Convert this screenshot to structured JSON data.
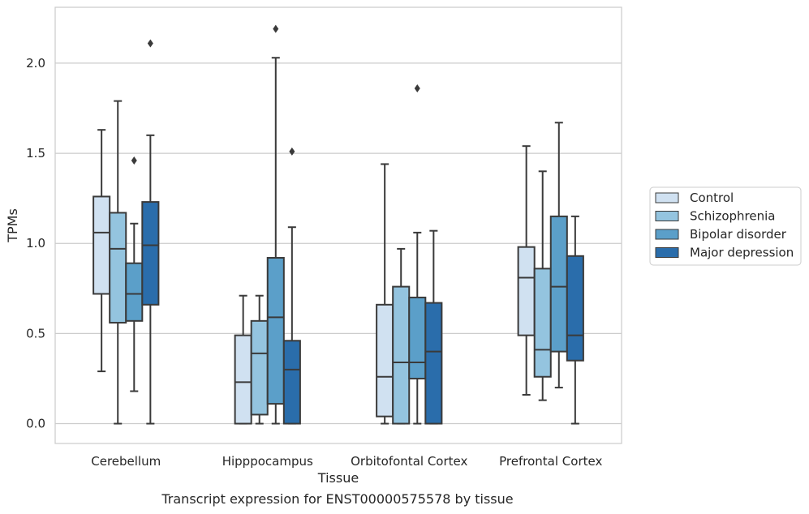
{
  "caption": "Transcript expression for ENST00000575578 by tissue",
  "chart_data": {
    "type": "box",
    "title": "",
    "xlabel": "Tissue",
    "ylabel": "TPMs",
    "ylim": [
      -0.11,
      2.31
    ],
    "yticks": [
      0.0,
      0.5,
      1.0,
      1.5,
      2.0
    ],
    "ytick_labels": [
      "0.0",
      "0.5",
      "1.0",
      "1.5",
      "2.0"
    ],
    "grid": "horizontal",
    "legend_position": "right",
    "categories": [
      "Cerebellum",
      "Hipppocampus",
      "Orbitofontal Cortex",
      "Prefrontal Cortex"
    ],
    "series": [
      {
        "name": "Control",
        "color": "#d0e1f1",
        "boxes": [
          {
            "whislo": 0.29,
            "q1": 0.72,
            "med": 1.06,
            "q3": 1.26,
            "whishi": 1.63,
            "fliers": []
          },
          {
            "whislo": 0.0,
            "q1": 0.0,
            "med": 0.23,
            "q3": 0.49,
            "whishi": 0.71,
            "fliers": []
          },
          {
            "whislo": 0.0,
            "q1": 0.04,
            "med": 0.26,
            "q3": 0.66,
            "whishi": 1.44,
            "fliers": []
          },
          {
            "whislo": 0.16,
            "q1": 0.49,
            "med": 0.81,
            "q3": 0.98,
            "whishi": 1.54,
            "fliers": []
          }
        ]
      },
      {
        "name": "Schizophrenia",
        "color": "#94c4df",
        "boxes": [
          {
            "whislo": 0.0,
            "q1": 0.56,
            "med": 0.97,
            "q3": 1.17,
            "whishi": 1.79,
            "fliers": []
          },
          {
            "whislo": 0.0,
            "q1": 0.05,
            "med": 0.39,
            "q3": 0.57,
            "whishi": 0.71,
            "fliers": []
          },
          {
            "whislo": 0.0,
            "q1": 0.0,
            "med": 0.34,
            "q3": 0.76,
            "whishi": 0.97,
            "fliers": []
          },
          {
            "whislo": 0.13,
            "q1": 0.26,
            "med": 0.41,
            "q3": 0.86,
            "whishi": 1.4,
            "fliers": []
          }
        ]
      },
      {
        "name": "Bipolar disorder",
        "color": "#5b9fc9",
        "boxes": [
          {
            "whislo": 0.18,
            "q1": 0.57,
            "med": 0.72,
            "q3": 0.89,
            "whishi": 1.11,
            "fliers": [
              1.46
            ]
          },
          {
            "whislo": 0.0,
            "q1": 0.11,
            "med": 0.59,
            "q3": 0.92,
            "whishi": 2.03,
            "fliers": [
              2.19
            ]
          },
          {
            "whislo": 0.0,
            "q1": 0.25,
            "med": 0.34,
            "q3": 0.7,
            "whishi": 1.06,
            "fliers": [
              1.86
            ]
          },
          {
            "whislo": 0.2,
            "q1": 0.4,
            "med": 0.76,
            "q3": 1.15,
            "whishi": 1.67,
            "fliers": []
          }
        ]
      },
      {
        "name": "Major depression",
        "color": "#2a6dab",
        "boxes": [
          {
            "whislo": 0.0,
            "q1": 0.66,
            "med": 0.99,
            "q3": 1.23,
            "whishi": 1.6,
            "fliers": [
              2.11
            ]
          },
          {
            "whislo": 0.0,
            "q1": 0.0,
            "med": 0.3,
            "q3": 0.46,
            "whishi": 1.09,
            "fliers": [
              1.51
            ]
          },
          {
            "whislo": 0.0,
            "q1": 0.0,
            "med": 0.4,
            "q3": 0.67,
            "whishi": 1.07,
            "fliers": []
          },
          {
            "whislo": 0.0,
            "q1": 0.35,
            "med": 0.49,
            "q3": 0.93,
            "whishi": 1.15,
            "fliers": []
          }
        ]
      }
    ]
  }
}
